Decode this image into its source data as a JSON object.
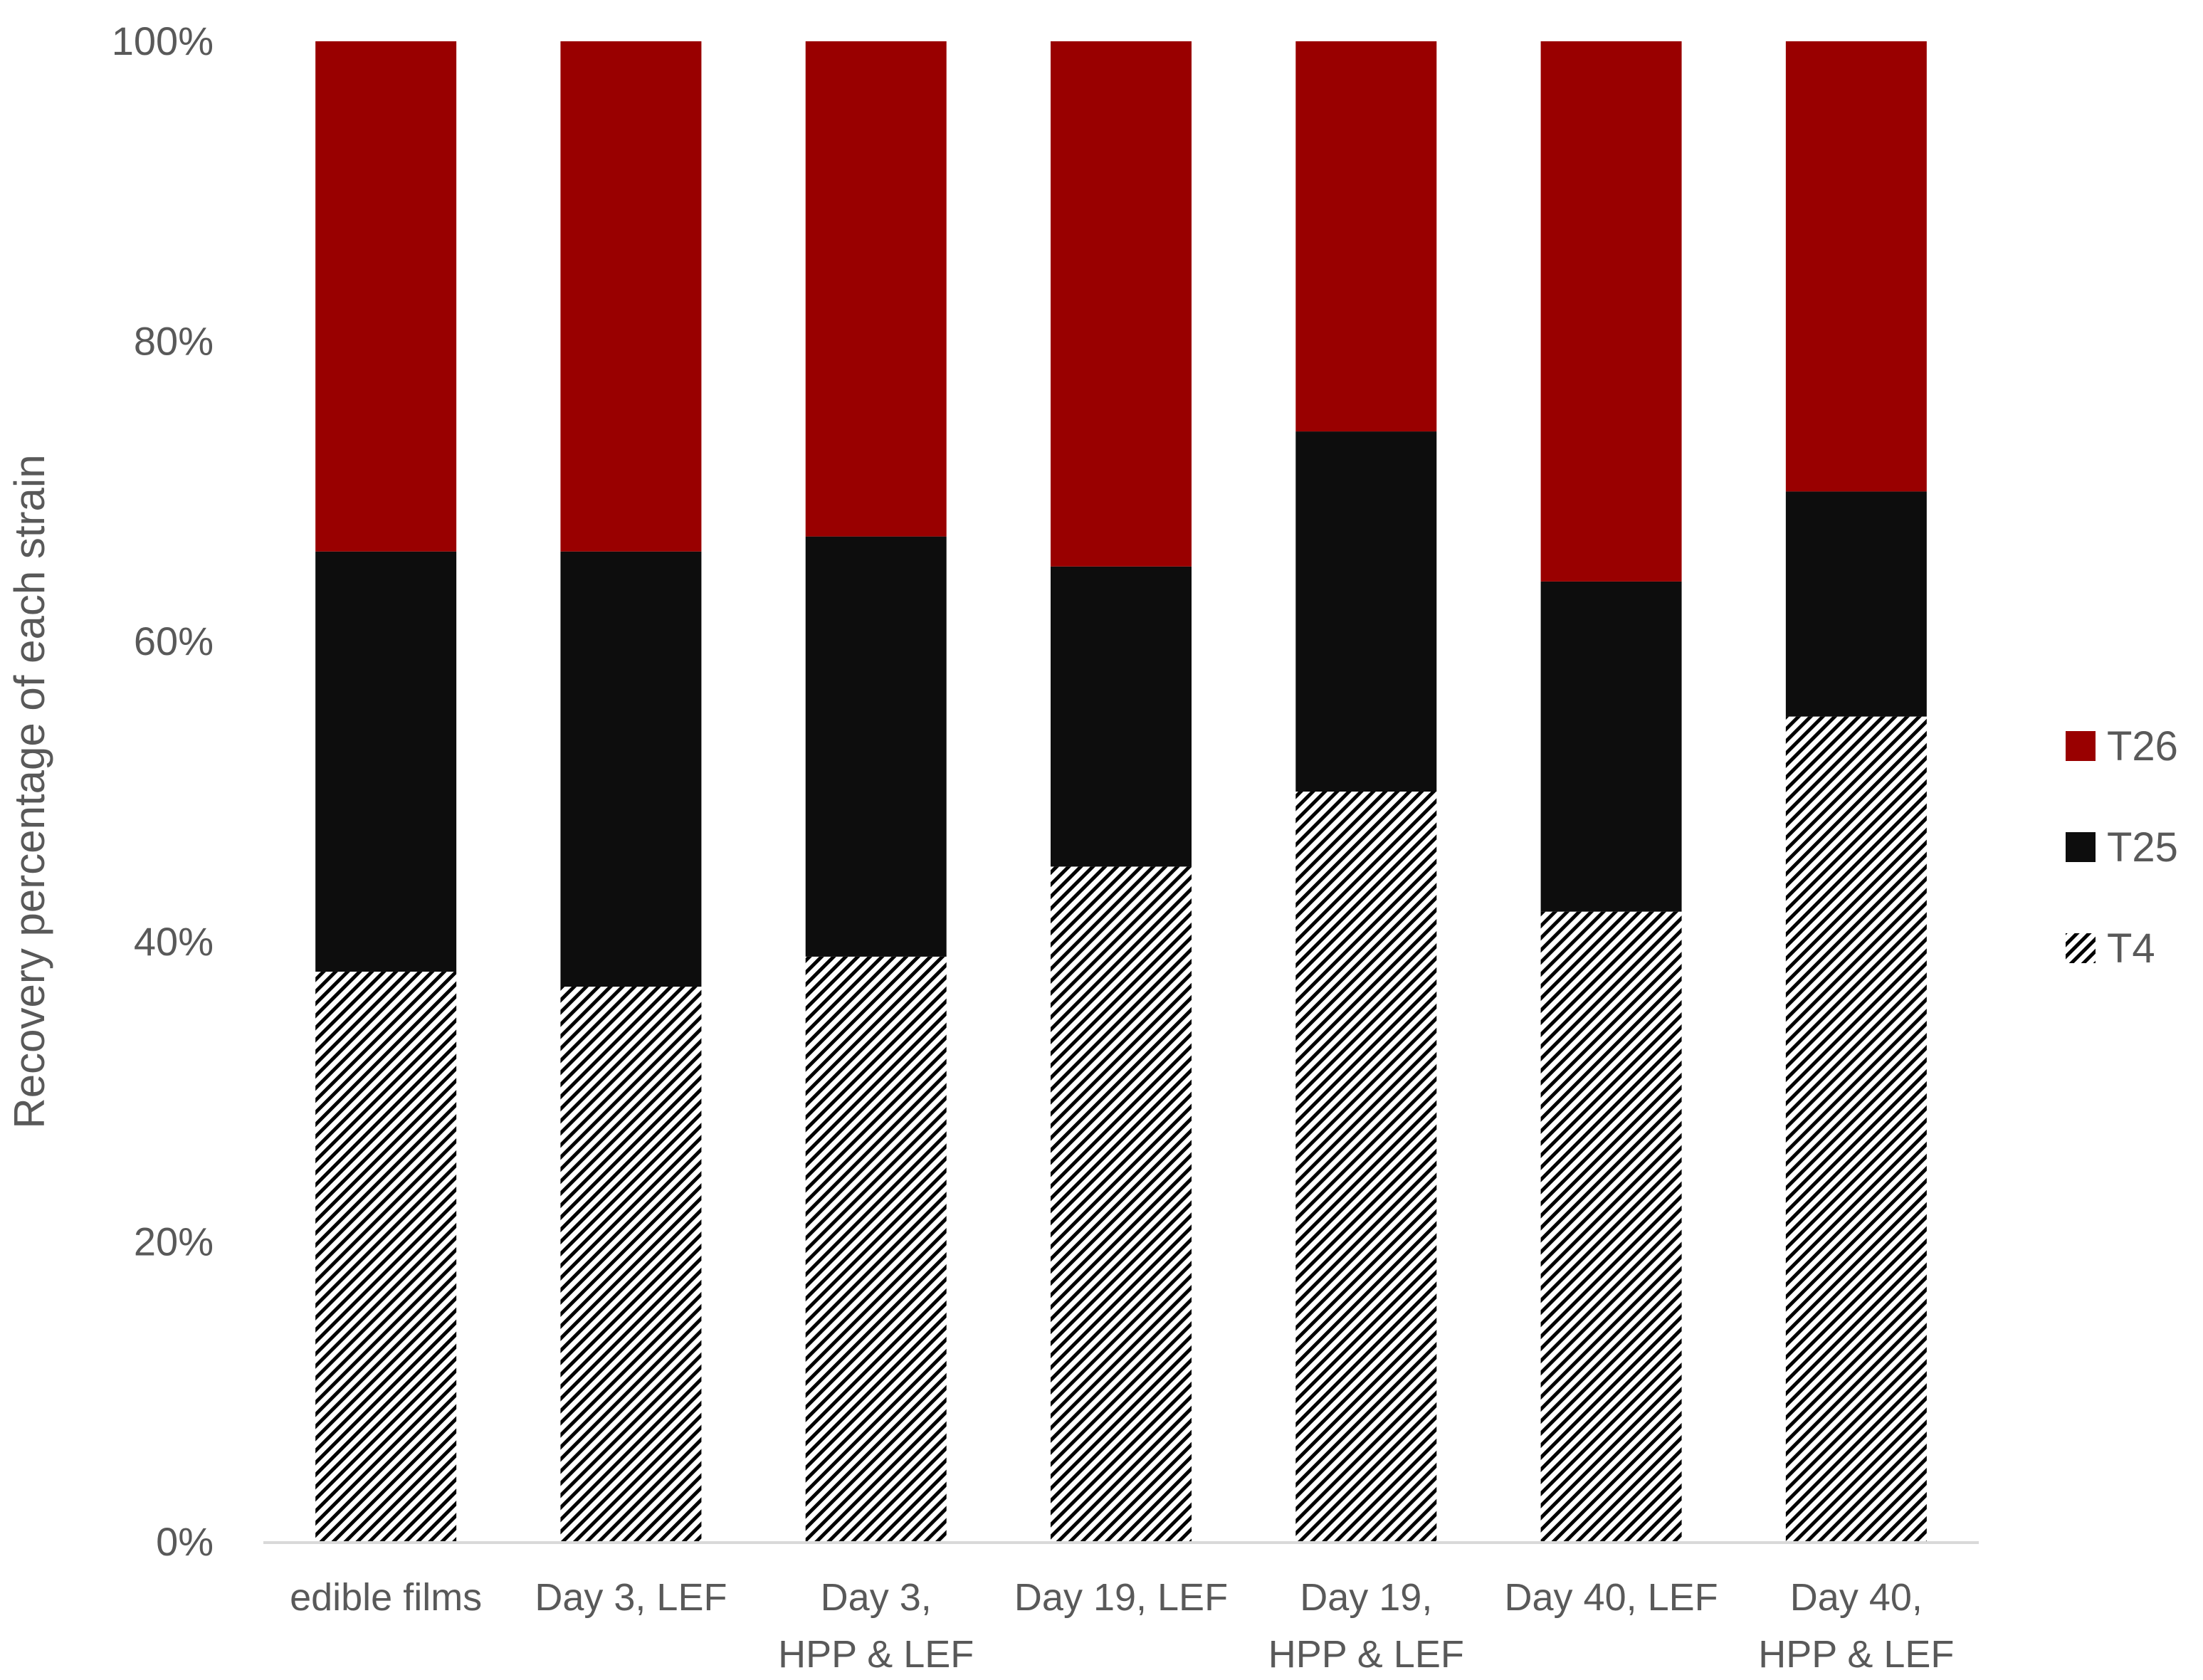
{
  "chart_data": {
    "type": "bar",
    "stacked": true,
    "percent_stacked": true,
    "categories": [
      [
        "edible films"
      ],
      [
        "Day 3, LEF"
      ],
      [
        "Day 3,",
        "HPP & LEF"
      ],
      [
        "Day 19, LEF"
      ],
      [
        "Day 19,",
        "HPP & LEF"
      ],
      [
        "Day 40, LEF"
      ],
      [
        "Day 40,",
        "HPP & LEF"
      ]
    ],
    "series": [
      {
        "name": "T4",
        "values": [
          38,
          37,
          39,
          45,
          50,
          42,
          55
        ],
        "color": "#000000",
        "pattern": "diagonal-hatch"
      },
      {
        "name": "T25",
        "values": [
          28,
          29,
          28,
          20,
          24,
          22,
          15
        ],
        "color": "#0d0d0d",
        "pattern": "solid"
      },
      {
        "name": "T26",
        "values": [
          34,
          34,
          33,
          35,
          26,
          36,
          30
        ],
        "color": "#990000",
        "pattern": "solid"
      }
    ],
    "title": "",
    "xlabel": "",
    "ylabel": "Recovery percentage of each strain",
    "ylim": [
      0,
      100
    ],
    "yticks": [
      "0%",
      "20%",
      "40%",
      "60%",
      "80%",
      "100%"
    ],
    "grid": false,
    "legend": "right",
    "legend_order": [
      "T26",
      "T25",
      "T4"
    ]
  }
}
